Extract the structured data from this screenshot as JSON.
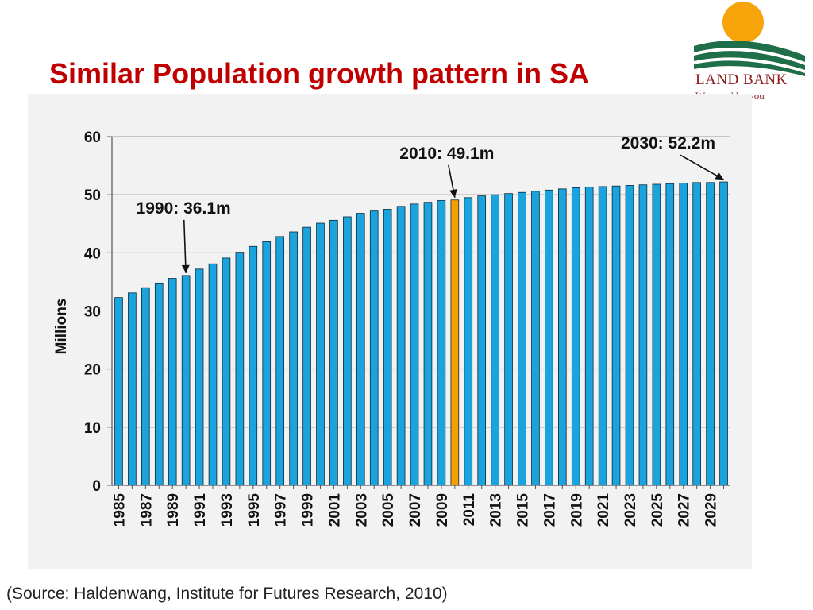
{
  "slide": {
    "title": "Similar Population growth pattern in SA",
    "source": "(Source: Haldenwang, Institute for Futures Research, 2010)"
  },
  "logo": {
    "name": "LAND BANK",
    "tagline": "We stand by you",
    "colors": {
      "sun": "#f7a30a",
      "stripes": "#1f6e4a",
      "text": "#8b1a1a"
    }
  },
  "chart_data": {
    "type": "bar",
    "title": "",
    "xlabel": "",
    "ylabel": "Millions",
    "ylim": [
      0,
      60
    ],
    "yticks": [
      0,
      10,
      20,
      30,
      40,
      50,
      60
    ],
    "grid": true,
    "legend": "none",
    "categories": [
      "1985",
      "1986",
      "1987",
      "1988",
      "1989",
      "1990",
      "1991",
      "1992",
      "1993",
      "1994",
      "1995",
      "1996",
      "1997",
      "1998",
      "1999",
      "2000",
      "2001",
      "2002",
      "2003",
      "2004",
      "2005",
      "2006",
      "2007",
      "2008",
      "2009",
      "2010",
      "2011",
      "2012",
      "2013",
      "2014",
      "2015",
      "2016",
      "2017",
      "2018",
      "2019",
      "2020",
      "2021",
      "2022",
      "2023",
      "2024",
      "2025",
      "2026",
      "2027",
      "2028",
      "2029",
      "2030"
    ],
    "tick_labels": [
      "1985",
      "1987",
      "1989",
      "1991",
      "1993",
      "1995",
      "1997",
      "1999",
      "2001",
      "2003",
      "2005",
      "2007",
      "2009",
      "2011",
      "2013",
      "2015",
      "2017",
      "2019",
      "2021",
      "2023",
      "2025",
      "2027",
      "2029"
    ],
    "series": [
      {
        "values": [
          32.3,
          33.1,
          34.0,
          34.8,
          35.6,
          36.1,
          37.2,
          38.1,
          39.1,
          40.1,
          41.1,
          41.9,
          42.8,
          43.6,
          44.4,
          45.1,
          45.6,
          46.2,
          46.8,
          47.2,
          47.5,
          48.0,
          48.4,
          48.7,
          49.0,
          49.1,
          49.5,
          49.8,
          50.0,
          50.2,
          50.4,
          50.6,
          50.8,
          51.0,
          51.2,
          51.3,
          51.4,
          51.5,
          51.6,
          51.7,
          51.8,
          51.9,
          52.0,
          52.1,
          52.1,
          52.2
        ]
      }
    ],
    "colors": {
      "bar": "#1aa3dc",
      "highlight": "#f5a000",
      "bar_edge": "#0a2a3a"
    },
    "highlight_category": "2010",
    "annotations": [
      {
        "text": "1990: 36.1m",
        "x": "1990",
        "y": 36.1
      },
      {
        "text": "2010: 49.1m",
        "x": "2010",
        "y": 49.1
      },
      {
        "text": "2030: 52.2m",
        "x": "2030",
        "y": 52.2
      }
    ]
  }
}
